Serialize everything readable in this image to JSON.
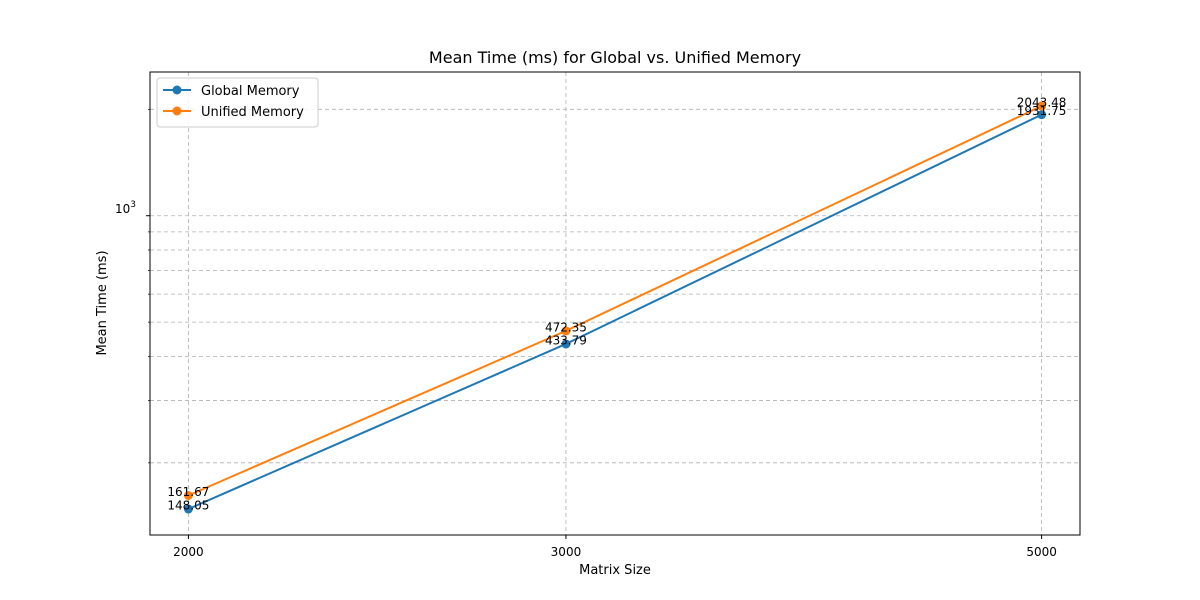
{
  "chart_data": {
    "type": "line",
    "title": "Mean Time (ms) for Global vs. Unified Memory",
    "xlabel": "Matrix Size",
    "ylabel": "Mean Time (ms)",
    "x": [
      2000,
      3000,
      5000
    ],
    "x_tick_labels": [
      "2000",
      "3000",
      "5000"
    ],
    "y_scale": "log",
    "y_tick_label": "10^3",
    "y_tick_label_base": "10",
    "y_tick_label_exp": "3",
    "ylim": [
      125,
      2550
    ],
    "grid": true,
    "legend_position": "top-left",
    "series": [
      {
        "name": "Global Memory",
        "values": [
          148.05,
          433.79,
          1931.75
        ],
        "labels": [
          "148.05",
          "433.79",
          "1931.75"
        ],
        "color": "#1f77b4"
      },
      {
        "name": "Unified Memory",
        "values": [
          161.67,
          472.35,
          2043.48
        ],
        "labels": [
          "161.67",
          "472.35",
          "2043.48"
        ],
        "color": "#ff7f0e"
      }
    ]
  }
}
